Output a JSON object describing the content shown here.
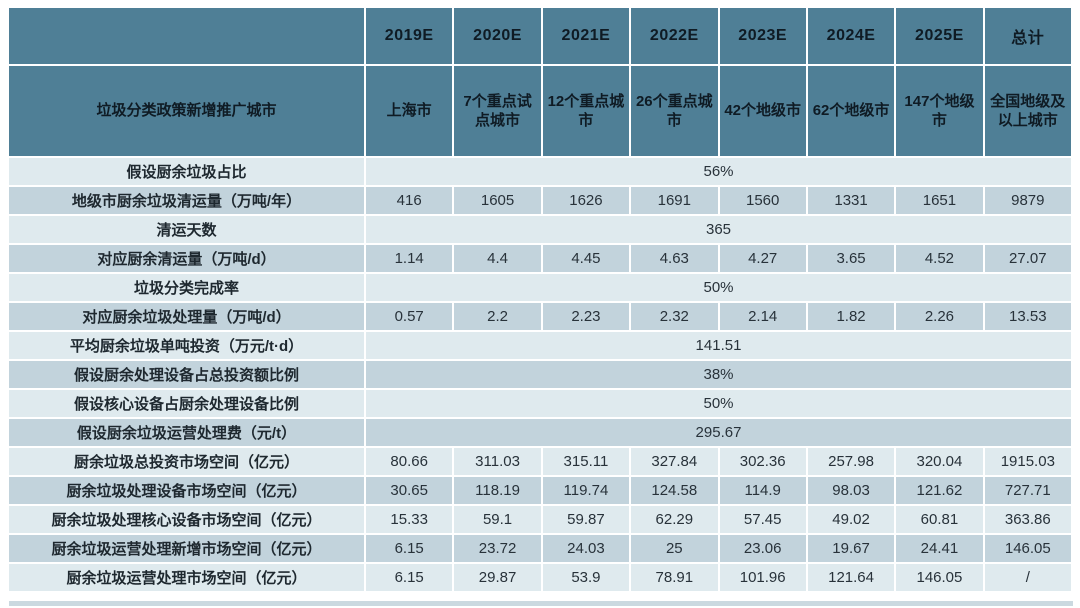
{
  "chart_data": {
    "type": "table",
    "title": "",
    "header": {
      "corner": "",
      "row_label": "垃圾分类政策新增推广城市",
      "years": [
        "2019E",
        "2020E",
        "2021E",
        "2022E",
        "2023E",
        "2024E",
        "2025E",
        "总计"
      ],
      "cities": [
        "上海市",
        "7个重点试点城市",
        "12个重点城市",
        "26个重点城市",
        "42个地级市",
        "62个地级市",
        "147个地级市",
        "全国地级及以上城市"
      ]
    },
    "rows": [
      {
        "label": "假设厨余垃圾占比",
        "value": "56%"
      },
      {
        "label": "地级市厨余垃圾清运量（万吨/年）",
        "values": [
          "416",
          "1605",
          "1626",
          "1691",
          "1560",
          "1331",
          "1651",
          "9879"
        ]
      },
      {
        "label": "清运天数",
        "value": "365"
      },
      {
        "label": "对应厨余清运量（万吨/d）",
        "values": [
          "1.14",
          "4.4",
          "4.45",
          "4.63",
          "4.27",
          "3.65",
          "4.52",
          "27.07"
        ]
      },
      {
        "label": "垃圾分类完成率",
        "value": "50%"
      },
      {
        "label": "对应厨余垃圾处理量（万吨/d）",
        "values": [
          "0.57",
          "2.2",
          "2.23",
          "2.32",
          "2.14",
          "1.82",
          "2.26",
          "13.53"
        ]
      },
      {
        "label": "平均厨余垃圾单吨投资（万元/t·d）",
        "value": "141.51"
      },
      {
        "label": "假设厨余处理设备占总投资额比例",
        "value": "38%"
      },
      {
        "label": "假设核心设备占厨余处理设备比例",
        "value": "50%"
      },
      {
        "label": "假设厨余垃圾运营处理费（元/t）",
        "value": "295.67"
      },
      {
        "label": "厨余垃圾总投资市场空间（亿元）",
        "values": [
          "80.66",
          "311.03",
          "315.11",
          "327.84",
          "302.36",
          "257.98",
          "320.04",
          "1915.03"
        ]
      },
      {
        "label": "厨余垃圾处理设备市场空间（亿元）",
        "values": [
          "30.65",
          "118.19",
          "119.74",
          "124.58",
          "114.9",
          "98.03",
          "121.62",
          "727.71"
        ]
      },
      {
        "label": "厨余垃圾处理核心设备市场空间（亿元）",
        "values": [
          "15.33",
          "59.1",
          "59.87",
          "62.29",
          "57.45",
          "49.02",
          "60.81",
          "363.86"
        ]
      },
      {
        "label": "厨余垃圾运营处理新增市场空间（亿元）",
        "values": [
          "6.15",
          "23.72",
          "24.03",
          "25",
          "23.06",
          "19.67",
          "24.41",
          "146.05"
        ]
      },
      {
        "label": "厨余垃圾运营处理市场空间（亿元）",
        "values": [
          "6.15",
          "29.87",
          "53.9",
          "78.91",
          "101.96",
          "121.64",
          "146.05",
          "/"
        ]
      }
    ],
    "layout": {
      "data_columns": 8,
      "merged_rows_span_all_data_columns": true
    }
  },
  "colors": {
    "header_bg": "#4F7F96",
    "row_light": "#DFEAEE",
    "row_dark": "#C2D3DC",
    "gridline": "#FFFFFF",
    "header_text": "#0F1B24",
    "body_text": "#28323A"
  }
}
